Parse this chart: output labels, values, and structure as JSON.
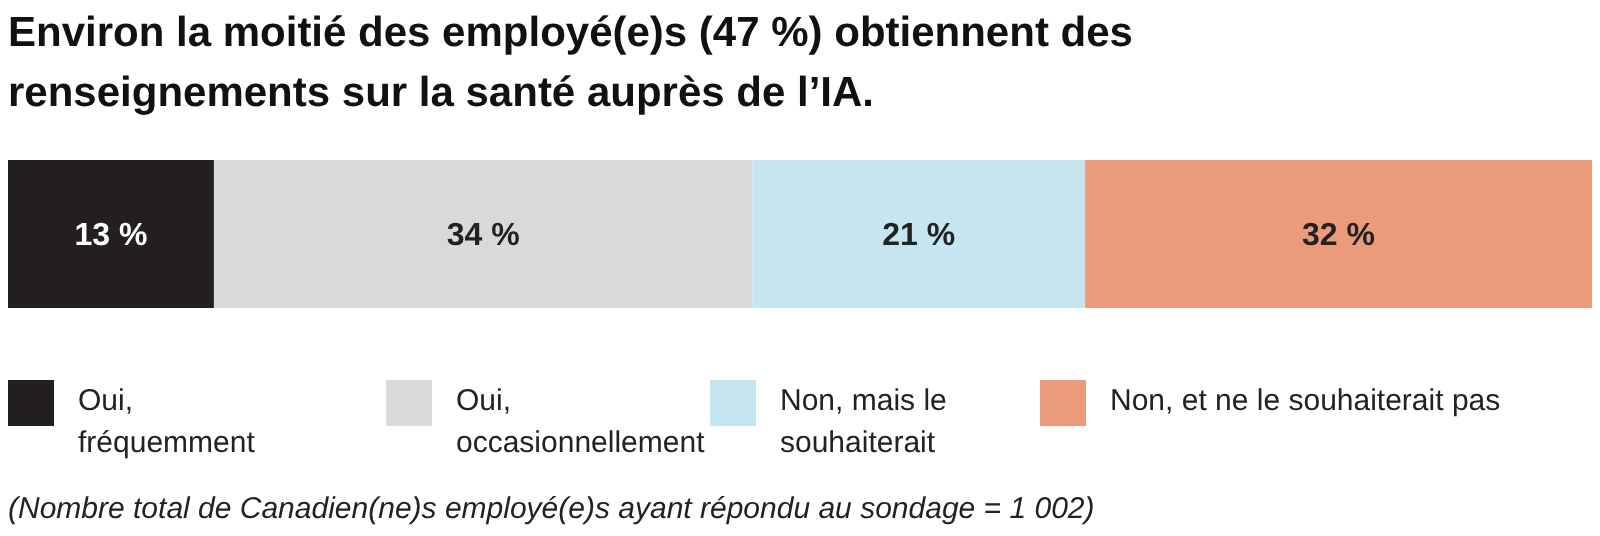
{
  "chart_data": {
    "type": "bar",
    "orientation": "horizontal",
    "stacked": true,
    "title": "Environ la moitié des employé(e)s (47 %) obtiennent des renseignements sur la santé auprès de l’IA.",
    "categories": [
      null
    ],
    "series": [
      {
        "name": "Oui, fréquemment",
        "color": "#231f20",
        "values": [
          13
        ],
        "value_labels": [
          "13 %"
        ]
      },
      {
        "name": "Oui, occasionnellement",
        "color": "#d9d9d9",
        "values": [
          34
        ],
        "value_labels": [
          "34 %"
        ]
      },
      {
        "name": "Non, mais le souhaiterait",
        "color": "#c5e5f0",
        "values": [
          21
        ],
        "value_labels": [
          "21 %"
        ]
      },
      {
        "name": "Non, et ne le souhaiterait pas",
        "color": "#eb9b7c",
        "values": [
          32
        ],
        "value_labels": [
          "32 %"
        ]
      }
    ],
    "legend": "bottom",
    "grid": false,
    "annotations": [
      "(Nombre total de Canadien(ne)s employé(e)s ayant répondu au sondage = 1 002)"
    ]
  }
}
